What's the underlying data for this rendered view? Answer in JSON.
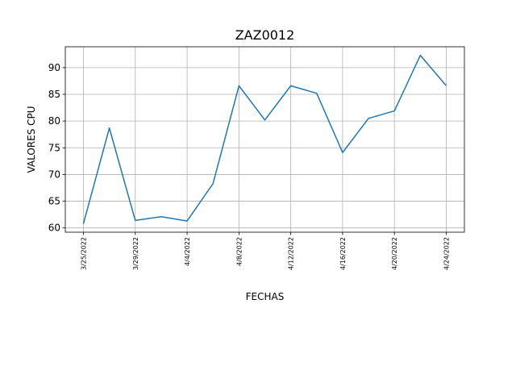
{
  "chart_data": {
    "type": "line",
    "title": "ZAZ0012",
    "x_label": "FECHAS",
    "y_label": "VALORES CPU",
    "categories": [
      "3/25/2022",
      null,
      "3/29/2022",
      null,
      "4/4/2022",
      null,
      "4/8/2022",
      null,
      "4/12/2022",
      null,
      "4/16/2022",
      null,
      "4/20/2022",
      null,
      "4/24/2022"
    ],
    "series": [
      {
        "name": "CPU",
        "color": "#1f77b4",
        "values": [
          60.8,
          78.7,
          61.4,
          62.1,
          61.3,
          68.3,
          86.6,
          80.2,
          86.6,
          85.2,
          74.1,
          80.5,
          81.9,
          92.3,
          86.6
        ]
      }
    ],
    "ylim": [
      59.2,
      93.9
    ],
    "yticks": [
      60,
      65,
      70,
      75,
      80,
      85,
      90
    ],
    "grid": true
  }
}
